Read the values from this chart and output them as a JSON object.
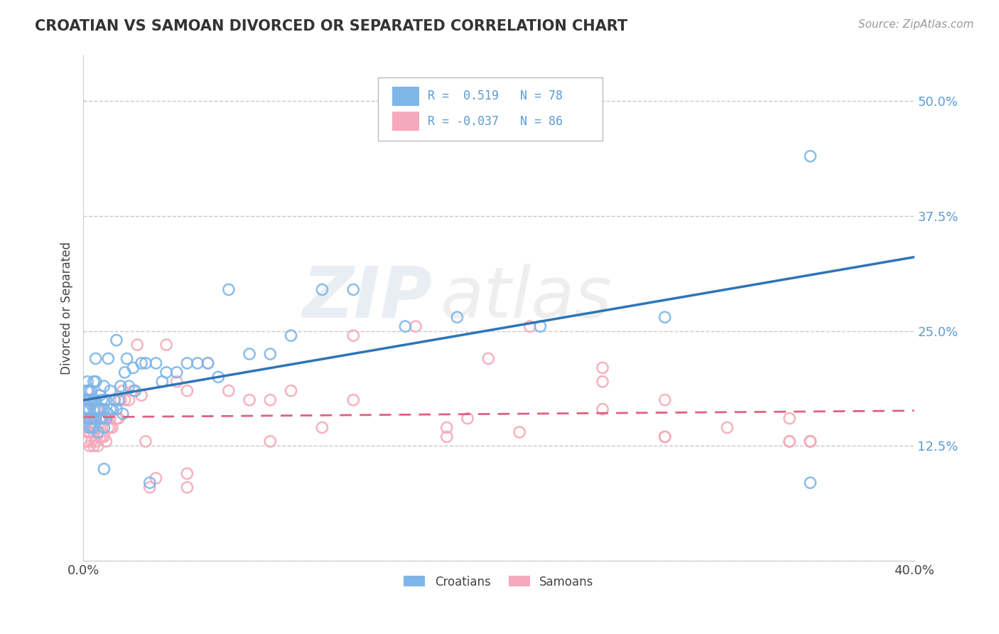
{
  "title": "CROATIAN VS SAMOAN DIVORCED OR SEPARATED CORRELATION CHART",
  "source": "Source: ZipAtlas.com",
  "ylabel": "Divorced or Separated",
  "xlim": [
    0.0,
    0.4
  ],
  "ylim": [
    0.0,
    0.55
  ],
  "ytick_vals": [
    0.0,
    0.125,
    0.25,
    0.375,
    0.5
  ],
  "ytick_labels": [
    "",
    "12.5%",
    "25.0%",
    "37.5%",
    "50.0%"
  ],
  "xtick_vals": [
    0.0,
    0.4
  ],
  "xtick_labels": [
    "0.0%",
    "40.0%"
  ],
  "croatian_color": "#7EB6E8",
  "samoan_color": "#F4AABB",
  "trend_croatian_color": "#2E75B6",
  "trend_samoan_color": "#E06080",
  "background_color": "#FFFFFF",
  "grid_color": "#C8C8C8",
  "tick_color": "#5B9BD5",
  "R_croatian": 0.519,
  "N_croatian": 78,
  "R_samoan": -0.037,
  "N_samoan": 86,
  "watermark_zip": "ZIP",
  "watermark_atlas": "atlas",
  "croatian_scatter_x": [
    0.001,
    0.001,
    0.001,
    0.002,
    0.002,
    0.002,
    0.002,
    0.002,
    0.003,
    0.003,
    0.003,
    0.003,
    0.003,
    0.004,
    0.004,
    0.004,
    0.004,
    0.005,
    0.005,
    0.005,
    0.005,
    0.005,
    0.006,
    0.006,
    0.006,
    0.007,
    0.007,
    0.008,
    0.008,
    0.008,
    0.009,
    0.009,
    0.01,
    0.01,
    0.01,
    0.011,
    0.011,
    0.012,
    0.012,
    0.013,
    0.013,
    0.014,
    0.015,
    0.016,
    0.016,
    0.017,
    0.018,
    0.019,
    0.02,
    0.021,
    0.022,
    0.024,
    0.025,
    0.028,
    0.03,
    0.035,
    0.038,
    0.04,
    0.045,
    0.05,
    0.055,
    0.06,
    0.065,
    0.07,
    0.08,
    0.09,
    0.1,
    0.115,
    0.13,
    0.155,
    0.18,
    0.22,
    0.28,
    0.35,
    0.35,
    0.032,
    0.01,
    0.006
  ],
  "croatian_scatter_y": [
    0.155,
    0.165,
    0.175,
    0.155,
    0.165,
    0.175,
    0.185,
    0.195,
    0.145,
    0.155,
    0.165,
    0.175,
    0.185,
    0.145,
    0.155,
    0.17,
    0.185,
    0.145,
    0.155,
    0.165,
    0.175,
    0.195,
    0.155,
    0.175,
    0.195,
    0.14,
    0.165,
    0.155,
    0.165,
    0.18,
    0.155,
    0.175,
    0.145,
    0.165,
    0.19,
    0.155,
    0.175,
    0.16,
    0.22,
    0.165,
    0.185,
    0.165,
    0.175,
    0.165,
    0.24,
    0.175,
    0.19,
    0.16,
    0.205,
    0.22,
    0.19,
    0.21,
    0.185,
    0.215,
    0.215,
    0.215,
    0.195,
    0.205,
    0.205,
    0.215,
    0.215,
    0.215,
    0.2,
    0.295,
    0.225,
    0.225,
    0.245,
    0.295,
    0.295,
    0.255,
    0.265,
    0.255,
    0.265,
    0.44,
    0.085,
    0.085,
    0.1,
    0.22
  ],
  "samoan_scatter_x": [
    0.001,
    0.001,
    0.001,
    0.001,
    0.002,
    0.002,
    0.002,
    0.002,
    0.002,
    0.003,
    0.003,
    0.003,
    0.003,
    0.004,
    0.004,
    0.004,
    0.004,
    0.005,
    0.005,
    0.005,
    0.005,
    0.006,
    0.006,
    0.006,
    0.007,
    0.007,
    0.007,
    0.008,
    0.008,
    0.009,
    0.009,
    0.01,
    0.01,
    0.011,
    0.011,
    0.012,
    0.013,
    0.013,
    0.014,
    0.015,
    0.016,
    0.017,
    0.018,
    0.019,
    0.02,
    0.022,
    0.024,
    0.026,
    0.028,
    0.03,
    0.032,
    0.035,
    0.04,
    0.045,
    0.05,
    0.06,
    0.07,
    0.08,
    0.09,
    0.1,
    0.115,
    0.13,
    0.16,
    0.185,
    0.215,
    0.25,
    0.28,
    0.31,
    0.34,
    0.175,
    0.21,
    0.28,
    0.34,
    0.175,
    0.28,
    0.34,
    0.35,
    0.35,
    0.35,
    0.25,
    0.25,
    0.195,
    0.13,
    0.05,
    0.05,
    0.09
  ],
  "samoan_scatter_y": [
    0.13,
    0.145,
    0.155,
    0.165,
    0.13,
    0.14,
    0.155,
    0.165,
    0.185,
    0.125,
    0.14,
    0.155,
    0.175,
    0.13,
    0.145,
    0.155,
    0.175,
    0.125,
    0.14,
    0.155,
    0.175,
    0.13,
    0.145,
    0.165,
    0.125,
    0.14,
    0.165,
    0.135,
    0.155,
    0.135,
    0.155,
    0.135,
    0.155,
    0.13,
    0.155,
    0.145,
    0.145,
    0.155,
    0.145,
    0.175,
    0.155,
    0.155,
    0.175,
    0.185,
    0.175,
    0.175,
    0.185,
    0.235,
    0.18,
    0.13,
    0.08,
    0.09,
    0.235,
    0.195,
    0.185,
    0.215,
    0.185,
    0.175,
    0.175,
    0.185,
    0.145,
    0.245,
    0.255,
    0.155,
    0.255,
    0.195,
    0.175,
    0.145,
    0.155,
    0.135,
    0.14,
    0.135,
    0.13,
    0.145,
    0.135,
    0.13,
    0.13,
    0.13,
    0.13,
    0.21,
    0.165,
    0.22,
    0.175,
    0.08,
    0.095,
    0.13
  ]
}
